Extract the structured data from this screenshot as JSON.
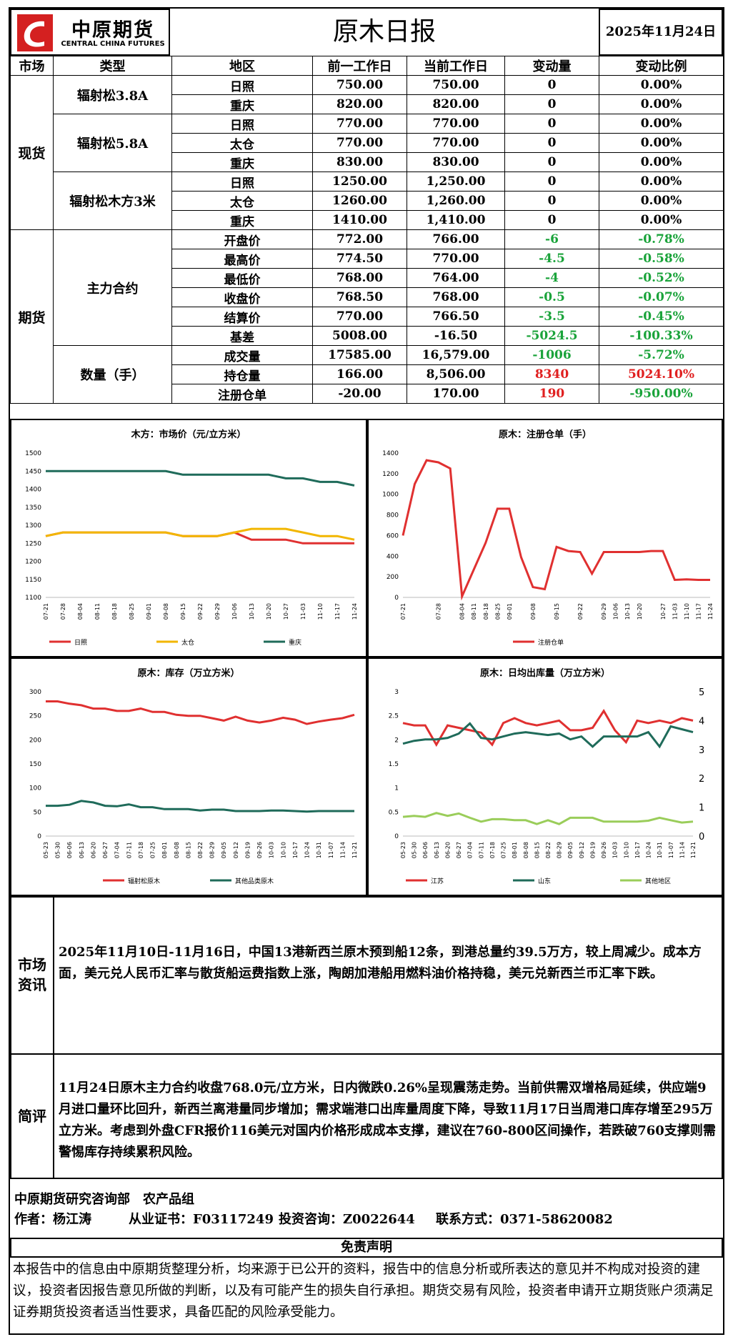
{
  "header": {
    "logo_cn": "中原期货",
    "logo_en": "CENTRAL CHINA FUTURES",
    "title": "原木日报",
    "date": "2025年11月24日"
  },
  "table": {
    "columns": [
      "市场",
      "类型",
      "地区",
      "前一工作日",
      "当前工作日",
      "变动量",
      "变动比例"
    ],
    "markets": [
      {
        "name": "现货",
        "groups": [
          {
            "name": "辐射松3.8A",
            "rows": [
              [
                "日照",
                "750.00",
                "750.00",
                "0",
                "0.00%"
              ],
              [
                "重庆",
                "820.00",
                "820.00",
                "0",
                "0.00%"
              ]
            ]
          },
          {
            "name": "辐射松5.8A",
            "rows": [
              [
                "日照",
                "770.00",
                "770.00",
                "0",
                "0.00%"
              ],
              [
                "太仓",
                "770.00",
                "770.00",
                "0",
                "0.00%"
              ],
              [
                "重庆",
                "830.00",
                "830.00",
                "0",
                "0.00%"
              ]
            ]
          },
          {
            "name": "辐射松木方3米",
            "rows": [
              [
                "日照",
                "1250.00",
                "1,250.00",
                "0",
                "0.00%"
              ],
              [
                "太仓",
                "1260.00",
                "1,260.00",
                "0",
                "0.00%"
              ],
              [
                "重庆",
                "1410.00",
                "1,410.00",
                "0",
                "0.00%"
              ]
            ]
          }
        ]
      },
      {
        "name": "期货",
        "groups": [
          {
            "name": "主力合约",
            "rows": [
              [
                "开盘价",
                "772.00",
                "766.00",
                "-6",
                "-0.78%"
              ],
              [
                "最高价",
                "774.50",
                "770.00",
                "-4.5",
                "-0.58%"
              ],
              [
                "最低价",
                "768.00",
                "764.00",
                "-4",
                "-0.52%"
              ],
              [
                "收盘价",
                "768.50",
                "768.00",
                "-0.5",
                "-0.07%"
              ],
              [
                "结算价",
                "770.00",
                "766.50",
                "-3.5",
                "-0.45%"
              ],
              [
                "基差",
                "5008.00",
                "-16.50",
                "-5024.5",
                "-100.33%"
              ]
            ]
          },
          {
            "name": "数量（手）",
            "rows": [
              [
                "成交量",
                "17585.00",
                "16,579.00",
                "-1006",
                "-5.72%"
              ],
              [
                "持仓量",
                "166.00",
                "8,506.00",
                "8340",
                "5024.10%"
              ],
              [
                "注册仓单",
                "-20.00",
                "170.00",
                "190",
                "-950.00%"
              ]
            ]
          }
        ]
      }
    ]
  },
  "chart_data": [
    {
      "type": "line",
      "title": "木方：市场价（元/立方米）",
      "categories": [
        "07-21",
        "07-28",
        "08-04",
        "08-11",
        "08-18",
        "08-25",
        "09-01",
        "09-08",
        "09-15",
        "09-22",
        "09-29",
        "10-06",
        "10-13",
        "10-20",
        "10-27",
        "11-03",
        "11-10",
        "11-17",
        "11-24"
      ],
      "series": [
        {
          "name": "日照",
          "color": "#e03030",
          "values": [
            1270,
            1280,
            1280,
            1280,
            1280,
            1280,
            1280,
            1280,
            1270,
            1270,
            1270,
            1280,
            1260,
            1260,
            1260,
            1250,
            1250,
            1250,
            1250
          ]
        },
        {
          "name": "太仓",
          "color": "#f2b600",
          "values": [
            1270,
            1280,
            1280,
            1280,
            1280,
            1280,
            1280,
            1280,
            1270,
            1270,
            1270,
            1280,
            1290,
            1290,
            1290,
            1280,
            1270,
            1270,
            1260
          ]
        },
        {
          "name": "重庆",
          "color": "#1f6b5a",
          "values": [
            1450,
            1450,
            1450,
            1450,
            1450,
            1450,
            1450,
            1450,
            1440,
            1440,
            1440,
            1440,
            1440,
            1440,
            1430,
            1430,
            1420,
            1420,
            1410
          ]
        }
      ],
      "ylim": [
        1100,
        1500
      ],
      "yticks": [
        1100,
        1150,
        1200,
        1250,
        1300,
        1350,
        1400,
        1450,
        1500
      ]
    },
    {
      "type": "line",
      "title": "原木：注册仓单（手）",
      "categories": [
        "07-21",
        null,
        null,
        "07-28",
        null,
        "08-04",
        "08-11",
        "08-18",
        "08-25",
        "09-01",
        null,
        "09-08",
        null,
        "09-15",
        null,
        "09-22",
        null,
        "09-29",
        "10-06",
        "10-13",
        "10-20",
        null,
        "10-27",
        "11-03",
        "11-10",
        "11-17",
        "11-24"
      ],
      "series": [
        {
          "name": "注册仓单",
          "color": "#e03030",
          "values": [
            600,
            1100,
            1330,
            1310,
            1250,
            10,
            270,
            530,
            860,
            860,
            390,
            100,
            80,
            490,
            450,
            440,
            230,
            440,
            440,
            440,
            440,
            450,
            450,
            170,
            175,
            170,
            170
          ]
        }
      ],
      "ylim": [
        0,
        1400
      ],
      "yticks": [
        0,
        200,
        400,
        600,
        800,
        1000,
        1200,
        1400
      ]
    },
    {
      "type": "line",
      "title": "原木：库存（万立方米）",
      "categories": [
        "05-23",
        "05-30",
        "06-06",
        "06-13",
        "06-20",
        "06-27",
        "07-04",
        "07-11",
        "07-18",
        "07-25",
        "08-01",
        "08-08",
        "08-15",
        "08-22",
        "08-29",
        "09-05",
        "09-12",
        "09-19",
        "09-26",
        "10-03",
        "10-10",
        "10-17",
        "10-24",
        "10-31",
        "11-07",
        "11-14",
        "11-21"
      ],
      "series": [
        {
          "name": "辐射松原木",
          "color": "#e03030",
          "values": [
            280,
            280,
            275,
            272,
            265,
            265,
            260,
            260,
            265,
            258,
            258,
            252,
            250,
            250,
            245,
            240,
            248,
            240,
            236,
            240,
            246,
            242,
            233,
            238,
            242,
            245,
            252
          ]
        },
        {
          "name": "其他品类原木",
          "color": "#1f6b5a",
          "values": [
            63,
            63,
            65,
            73,
            70,
            63,
            62,
            66,
            60,
            60,
            56,
            56,
            56,
            53,
            55,
            55,
            52,
            52,
            52,
            53,
            53,
            52,
            51,
            52,
            52,
            52,
            52
          ]
        }
      ],
      "ylim": [
        0,
        300
      ],
      "yticks": [
        0,
        50,
        100,
        150,
        200,
        250,
        300
      ]
    },
    {
      "type": "line",
      "title": "原木：日均出库量（万立方米）",
      "categories": [
        "05-23",
        "05-30",
        "06-06",
        "06-13",
        "06-20",
        "06-27",
        "07-04",
        "07-11",
        "07-18",
        "07-25",
        "08-01",
        "08-08",
        "08-15",
        "08-22",
        "08-29",
        "09-05",
        "09-12",
        "09-19",
        "09-26",
        "10-03",
        "10-10",
        "10-17",
        "10-24",
        "10-31",
        "11-07",
        "11-14",
        "11-21"
      ],
      "series": [
        {
          "name": "江苏",
          "color": "#e03030",
          "values": [
            2.35,
            2.3,
            2.3,
            1.9,
            2.3,
            2.25,
            2.2,
            2.15,
            1.9,
            2.35,
            2.45,
            2.35,
            2.3,
            2.35,
            2.4,
            2.2,
            2.2,
            2.25,
            2.6,
            2.2,
            1.95,
            2.4,
            2.35,
            2.4,
            2.35,
            2.45,
            2.4
          ]
        },
        {
          "name": "山东",
          "color": "#1f6b5a",
          "axis": "y2",
          "values": [
            3.2,
            3.3,
            3.35,
            3.35,
            3.4,
            3.55,
            3.9,
            3.4,
            3.35,
            3.45,
            3.55,
            3.6,
            3.55,
            3.5,
            3.55,
            3.35,
            3.45,
            3.1,
            3.45,
            3.45,
            3.45,
            3.45,
            3.6,
            3.1,
            3.8,
            3.7,
            3.6
          ]
        },
        {
          "name": "其他地区",
          "color": "#9acd5a",
          "values": [
            0.4,
            0.42,
            0.4,
            0.48,
            0.42,
            0.47,
            0.38,
            0.3,
            0.35,
            0.35,
            0.33,
            0.33,
            0.25,
            0.33,
            0.25,
            0.38,
            0.38,
            0.38,
            0.3,
            0.3,
            0.3,
            0.3,
            0.32,
            0.38,
            0.33,
            0.28,
            0.3
          ]
        }
      ],
      "ylim": [
        0,
        3
      ],
      "yticks": [
        0,
        0.5,
        1,
        1.5,
        2,
        2.5,
        3
      ],
      "y2lim": [
        0,
        5
      ],
      "y2ticks": [
        0,
        1,
        2,
        3,
        4,
        5
      ]
    }
  ],
  "news": {
    "label": "市场资讯",
    "text": "2025年11月10日-11月16日，中国13港新西兰原木预到船12条，到港总量约39.5万方，较上周减少。成本方面，美元兑人民币汇率与散货船运费指数上涨，陶朗加港船用燃料油价格持稳，美元兑新西兰币汇率下跌。"
  },
  "comment": {
    "label": "简评",
    "text": "11月24日原木主力合约收盘768.0元/立方米，日内微跌0.26%呈现震荡走势。当前供需双增格局延续，供应端9月进口量环比回升，新西兰离港量同步增加；需求端港口出库量周度下降，导致11月17日当周港口库存增至295万立方米。考虑到外盘CFR报价116美元对国内价格形成成本支撑，建议在760-800区间操作，若跌破760支撑则需警惕库存持续累积风险。"
  },
  "footer": {
    "dept": "中原期货研究咨询部　农产品组",
    "author": "作者：杨江涛",
    "cert": "从业证书：F03117249",
    "advisory": "投资咨询：Z0022644",
    "contact": "联系方式：0371-58620082"
  },
  "disclaimer": {
    "title": "免责声明",
    "text": "本报告中的信息由中原期货整理分析，均来源于已公开的资料，报告中的信息分析或所表达的意见并不构成对投资的建议，投资者因报告意见所做的判断，以及有可能产生的损失自行承担。期货交易有风险，投资者申请开立期货账户须满足证券期货投资者适当性要求，具备匹配的风险承受能力。"
  }
}
